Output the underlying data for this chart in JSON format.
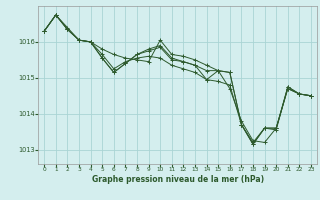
{
  "title": "Graphe pression niveau de la mer (hPa)",
  "background_color": "#d4eeee",
  "grid_color": "#aad4d4",
  "line_color": "#2d5a2d",
  "xlim": [
    -0.5,
    23.5
  ],
  "ylim": [
    1012.6,
    1017.0
  ],
  "yticks": [
    1013,
    1014,
    1015,
    1016
  ],
  "xticks": [
    0,
    1,
    2,
    3,
    4,
    5,
    6,
    7,
    8,
    9,
    10,
    11,
    12,
    13,
    14,
    15,
    16,
    17,
    18,
    19,
    20,
    21,
    22,
    23
  ],
  "series": [
    [
      1016.3,
      1016.75,
      1016.4,
      1016.05,
      1016.0,
      1015.8,
      1015.65,
      1015.55,
      1015.5,
      1015.45,
      1016.05,
      1015.65,
      1015.6,
      1015.5,
      1015.35,
      1015.2,
      1014.7,
      1013.8,
      1013.25,
      1013.2,
      1013.6,
      1014.75,
      1014.55,
      1014.5
    ],
    [
      1016.3,
      1016.75,
      1016.35,
      1016.05,
      1016.0,
      1015.65,
      1015.25,
      1015.45,
      1015.55,
      1015.6,
      1015.55,
      1015.35,
      1015.25,
      1015.15,
      1014.95,
      1015.2,
      1015.15,
      1013.7,
      1013.15,
      1013.6,
      1013.55,
      1014.75,
      1014.55,
      1014.5
    ],
    [
      1016.3,
      1016.75,
      1016.35,
      1016.05,
      1016.0,
      1015.55,
      1015.15,
      1015.4,
      1015.65,
      1015.8,
      1015.9,
      1015.55,
      1015.45,
      1015.35,
      1015.2,
      1015.2,
      1015.15,
      1013.7,
      1013.15,
      1013.6,
      1013.6,
      1014.7,
      1014.55,
      1014.5
    ],
    [
      1016.3,
      1016.75,
      1016.35,
      1016.05,
      1016.0,
      1015.55,
      1015.15,
      1015.4,
      1015.65,
      1015.75,
      1015.85,
      1015.5,
      1015.45,
      1015.35,
      1014.95,
      1014.9,
      1014.8,
      1013.7,
      1013.2,
      1013.6,
      1013.6,
      1014.7,
      1014.55,
      1014.5
    ]
  ]
}
